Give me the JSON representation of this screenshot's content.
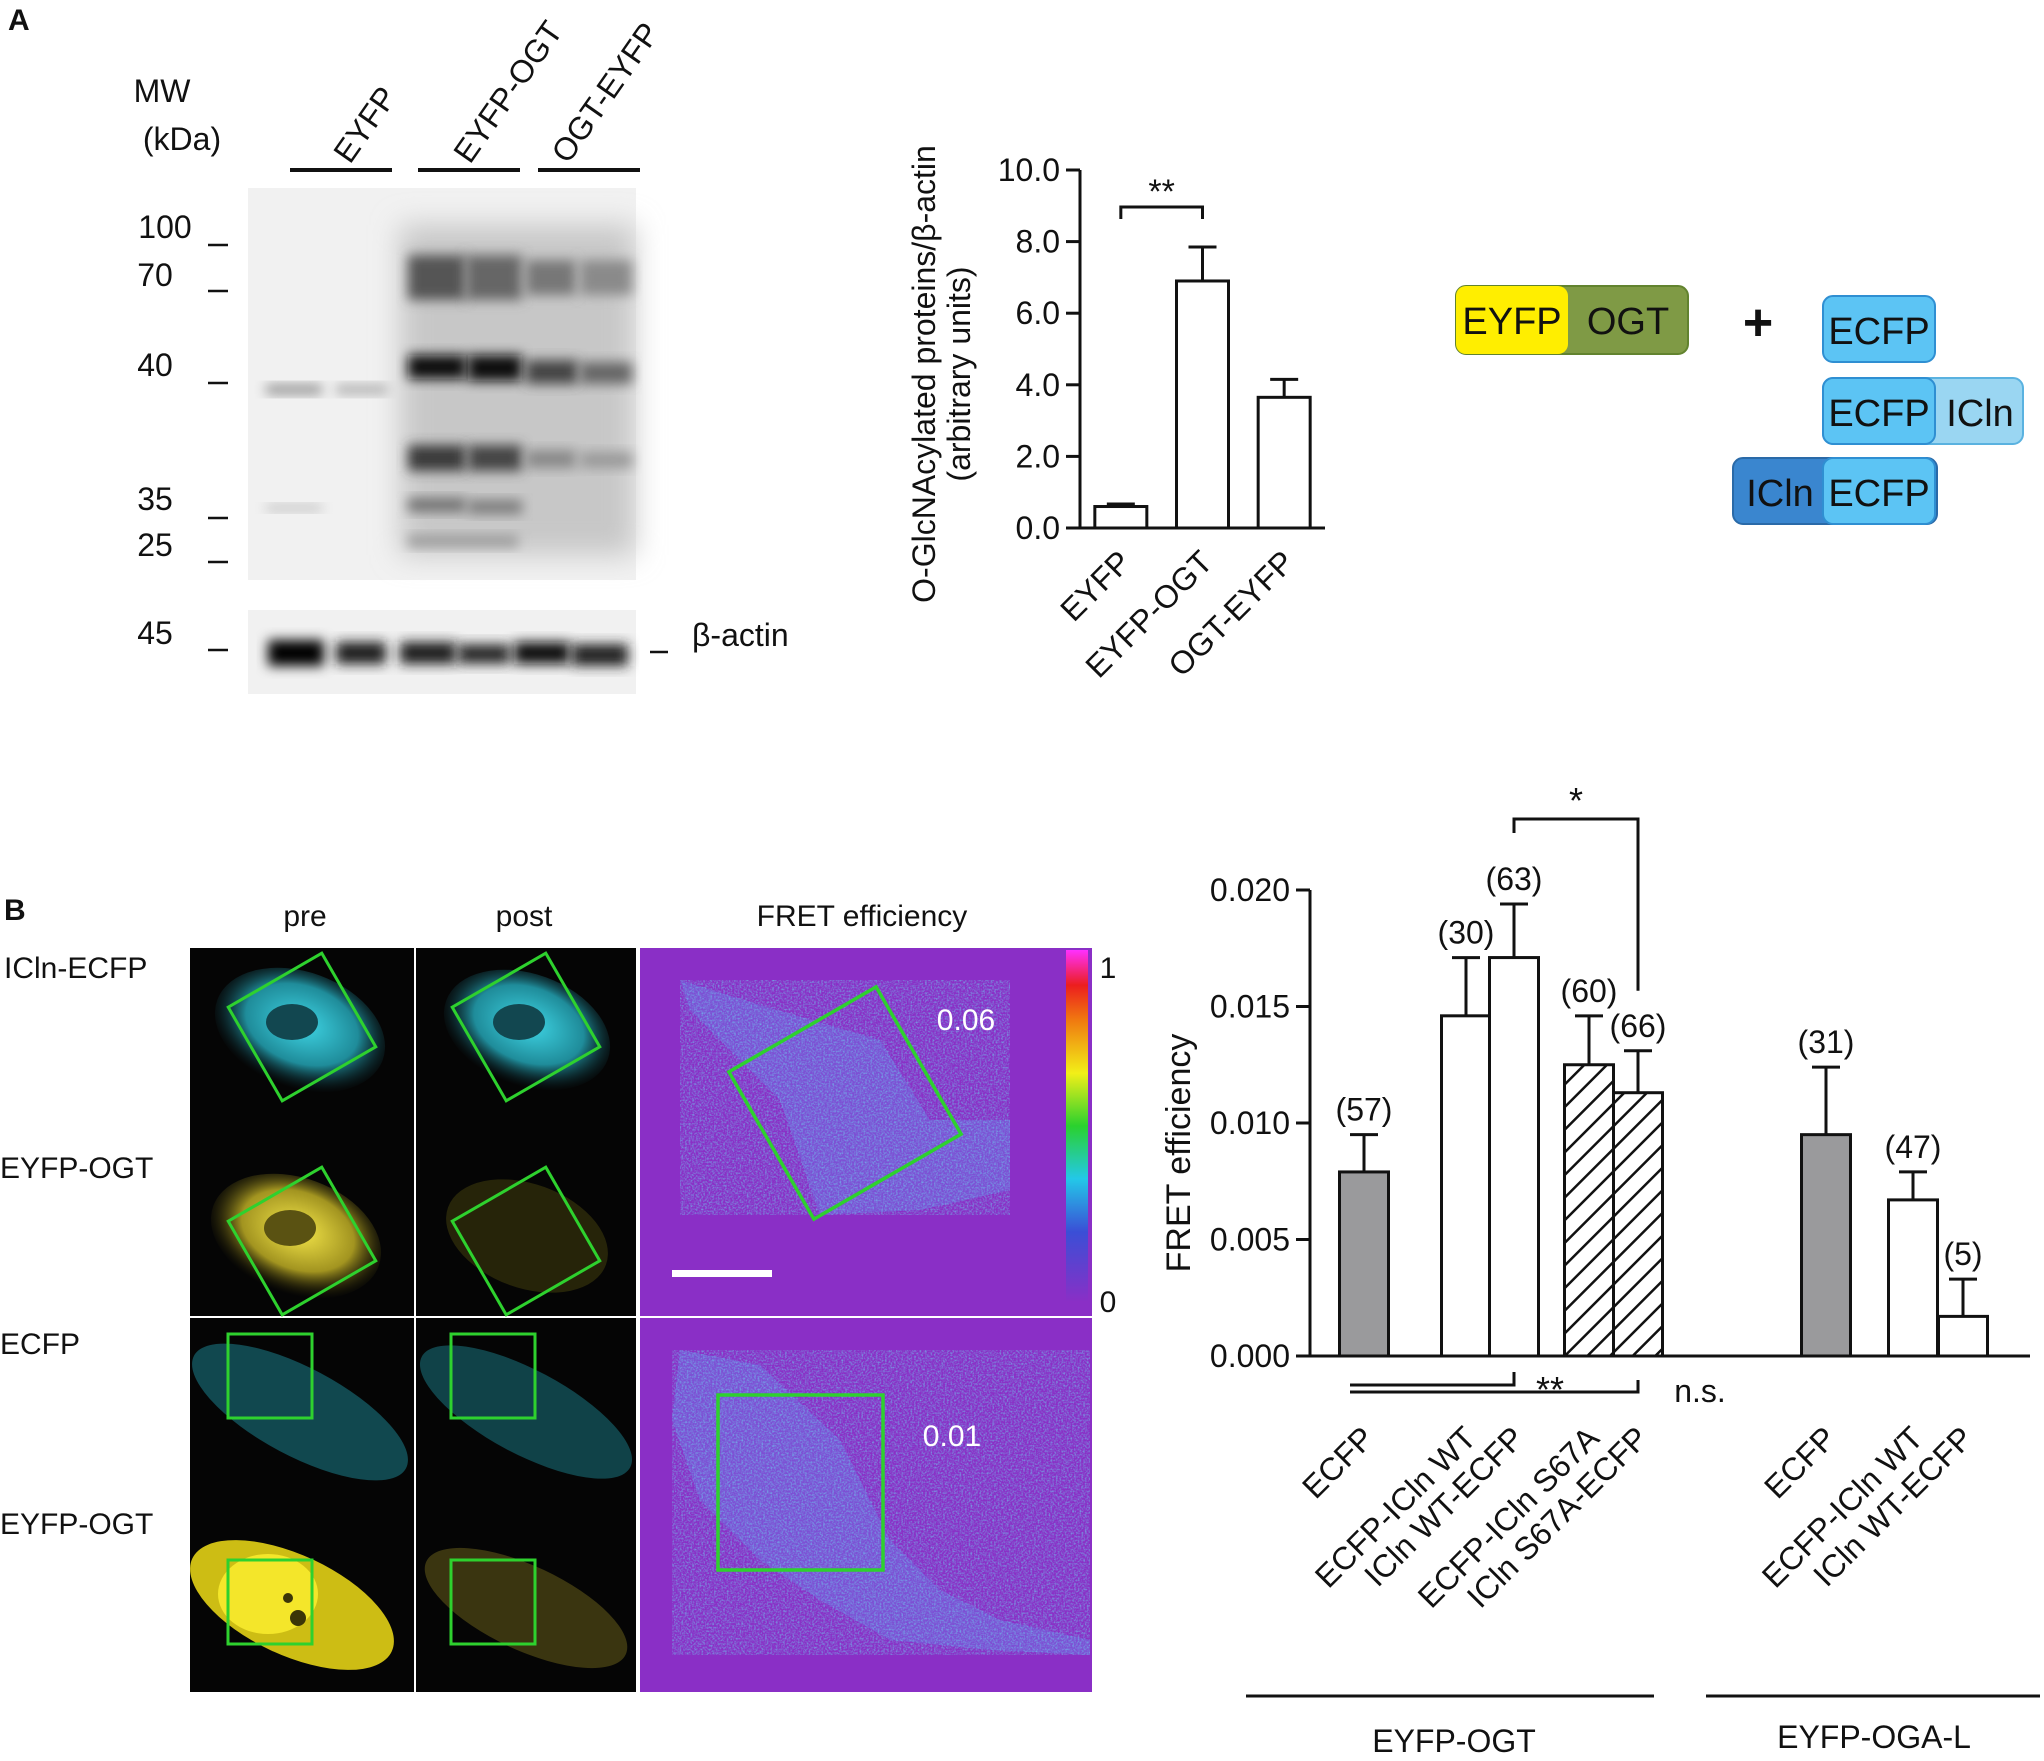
{
  "panel_a": {
    "label": "A",
    "blot": {
      "mw_title_1": "MW",
      "mw_title_2": "(kDa)",
      "mw_markers": [
        "100",
        "70",
        "40",
        "35",
        "25"
      ],
      "actin_marker": "45",
      "actin_label": "β-actin",
      "lane_groups": [
        "EYFP",
        "EYFP-OGT",
        "OGT-EYFP"
      ]
    },
    "schematic": {
      "eyfp": "EYFP",
      "ogt": "OGT",
      "plus": "+",
      "ecfp_1": "ECFP",
      "ecfp_2": "ECFP",
      "icln_2": "ICln",
      "icln_3": "ICln",
      "ecfp_3": "ECFP"
    }
  },
  "panel_b": {
    "label": "B",
    "images": {
      "col_pre": "pre",
      "col_post": "post",
      "col_fret": "FRET efficiency",
      "row_1": "ICln-ECFP",
      "row_2": "EYFP-OGT",
      "row_3": "ECFP",
      "row_4": "EYFP-OGT",
      "value_top": "0.06",
      "value_bottom": "0.01",
      "scale_max": "1",
      "scale_min": "0"
    }
  },
  "colors": {
    "gray_bar": "#9a9a9c",
    "open_bar": "#ffffff",
    "fret_bg": "#8a2fc6",
    "roi": "#2ed12e",
    "eyfp_yellow": "#ffee00",
    "ogt_olive": "#7f9a45",
    "ecfp_blue": "#5cc4f4"
  },
  "chart_data": [
    {
      "type": "bar",
      "ylabel_1": "O-GlcNAcylated proteins/β-actin",
      "ylabel_2": "(arbitrary units)",
      "categories": [
        "EYFP",
        "EYFP-OGT",
        "OGT-EYFP"
      ],
      "values": [
        0.6,
        6.9,
        3.65
      ],
      "errors": [
        0.07,
        0.95,
        0.5
      ],
      "ylim": [
        0,
        10
      ],
      "yticks": [
        "0.0",
        "2.0",
        "4.0",
        "6.0",
        "8.0",
        "10.0"
      ],
      "significance": [
        {
          "from": 0,
          "to": 1,
          "label": "**"
        }
      ]
    },
    {
      "type": "bar",
      "ylabel": "FRET efficiency",
      "ylim": [
        0,
        0.02
      ],
      "yticks": [
        "0.000",
        "0.005",
        "0.010",
        "0.015",
        "0.020"
      ],
      "categories": [
        "ECFP",
        "ECFP-ICln WT",
        "ICln WT-ECFP",
        "ECFP-ICln S67A",
        "ICln S67A-ECFP",
        "ECFP",
        "ECFP-ICln WT",
        "ICln WT-ECFP"
      ],
      "values": [
        0.0079,
        0.0146,
        0.0171,
        0.0125,
        0.0113,
        0.0095,
        0.0067,
        0.0017
      ],
      "errors": [
        0.0016,
        0.0025,
        0.0023,
        0.0021,
        0.0018,
        0.0029,
        0.0012,
        0.0016
      ],
      "n_labels": [
        "(57)",
        "(30)",
        "(63)",
        "(60)",
        "(66)",
        "(31)",
        "(47)",
        "(5)"
      ],
      "fills": [
        "gray",
        "open",
        "open",
        "hatched",
        "hatched",
        "gray",
        "open",
        "open"
      ],
      "groups": [
        {
          "label": "EYFP-OGT",
          "count": 5
        },
        {
          "label": "EYFP-OGA-L",
          "count": 3
        }
      ],
      "significance": [
        {
          "label": "*"
        },
        {
          "label": "**"
        },
        {
          "label": "n.s."
        }
      ]
    }
  ]
}
